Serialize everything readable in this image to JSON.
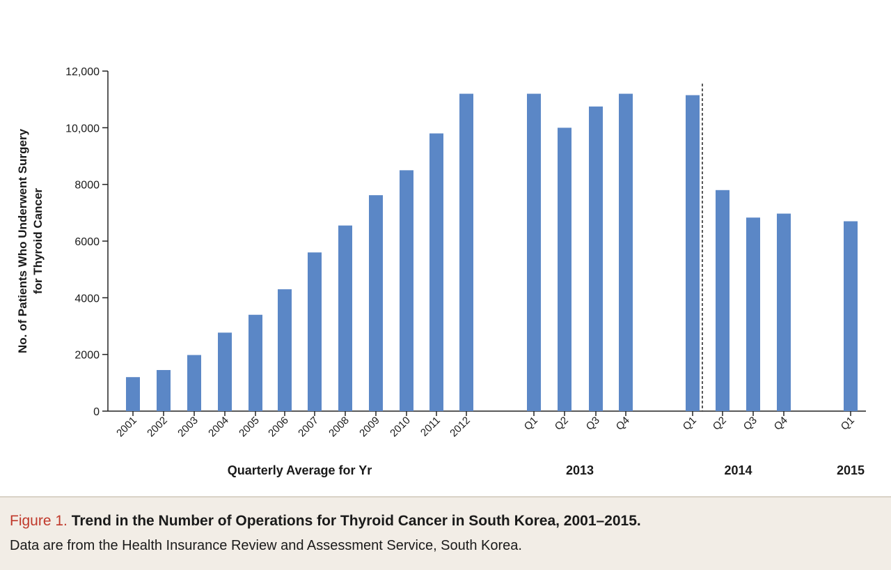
{
  "chart_data": {
    "type": "bar",
    "ylabel_line1": "No. of Patients Who Underwent Surgery",
    "ylabel_line2": "for Thyroid Cancer",
    "ylim": [
      0,
      12000
    ],
    "yticks": [
      {
        "value": 0,
        "label": "0"
      },
      {
        "value": 2000,
        "label": "2000"
      },
      {
        "value": 4000,
        "label": "4000"
      },
      {
        "value": 6000,
        "label": "6000"
      },
      {
        "value": 8000,
        "label": "8000"
      },
      {
        "value": 10000,
        "label": "10,000"
      },
      {
        "value": 12000,
        "label": "12,000"
      }
    ],
    "color": "#5b87c6",
    "categories": [
      "2001",
      "2002",
      "2003",
      "2004",
      "2005",
      "2006",
      "2007",
      "2008",
      "2009",
      "2010",
      "2011",
      "2012",
      "Q1",
      "Q2",
      "Q3",
      "Q4",
      "Q1",
      "Q2",
      "Q3",
      "Q4",
      "Q1"
    ],
    "values": [
      1200,
      1450,
      1980,
      2770,
      3400,
      4300,
      5600,
      6550,
      7620,
      8500,
      9800,
      11200,
      11200,
      10000,
      10750,
      11200,
      11150,
      7800,
      6830,
      6970,
      6700
    ],
    "groups": [
      {
        "label": "Quarterly Average for Yr",
        "first": 0,
        "last": 11
      },
      {
        "label": "2013",
        "first": 12,
        "last": 15
      },
      {
        "label": "2014",
        "first": 16,
        "last": 19
      },
      {
        "label": "2015",
        "first": 20,
        "last": 20
      }
    ],
    "reference_line_after_index": 16,
    "grid": false
  },
  "caption": {
    "figure_label": "Figure 1.",
    "title": "Trend in the Number of Operations for Thyroid Cancer in South Korea, 2001–2015.",
    "note": "Data are from the Health Insurance Review and Assessment Service, South Korea."
  }
}
